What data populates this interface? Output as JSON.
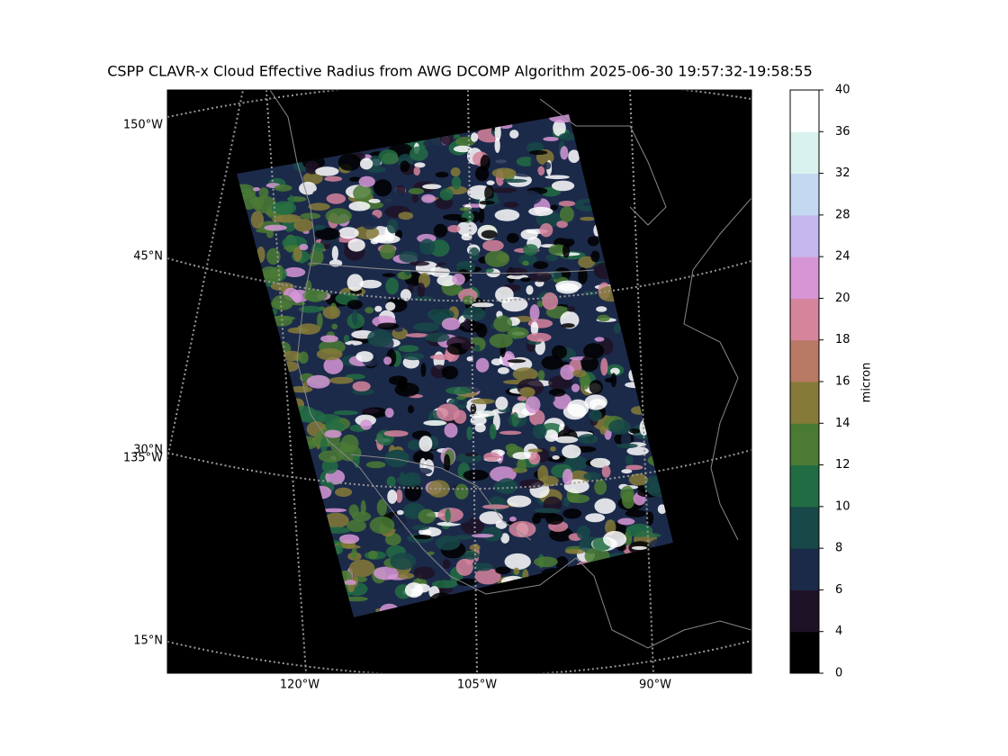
{
  "title": "CSPP CLAVR-x Cloud Effective Radius from AWG DCOMP Algorithm 2025-06-30 19:57:32-19:58:55",
  "map": {
    "left_labels": [
      "150°W",
      "45°N",
      "30°N",
      "135°W",
      "15°N"
    ],
    "bottom_labels": [
      "120°W",
      "105°W",
      "90°W"
    ]
  },
  "colorbar": {
    "label": "micron",
    "levels": [
      0,
      4,
      6,
      8,
      10,
      12,
      14,
      16,
      18,
      20,
      24,
      28,
      32,
      36,
      40
    ],
    "colors": [
      "#000000",
      "#1e1226",
      "#1c2a4a",
      "#184848",
      "#226c44",
      "#4a7a34",
      "#857a38",
      "#b87a64",
      "#d6849c",
      "#d696d6",
      "#c4b8ee",
      "#c4d8f2",
      "#daf2ee",
      "#ffffff"
    ]
  }
}
